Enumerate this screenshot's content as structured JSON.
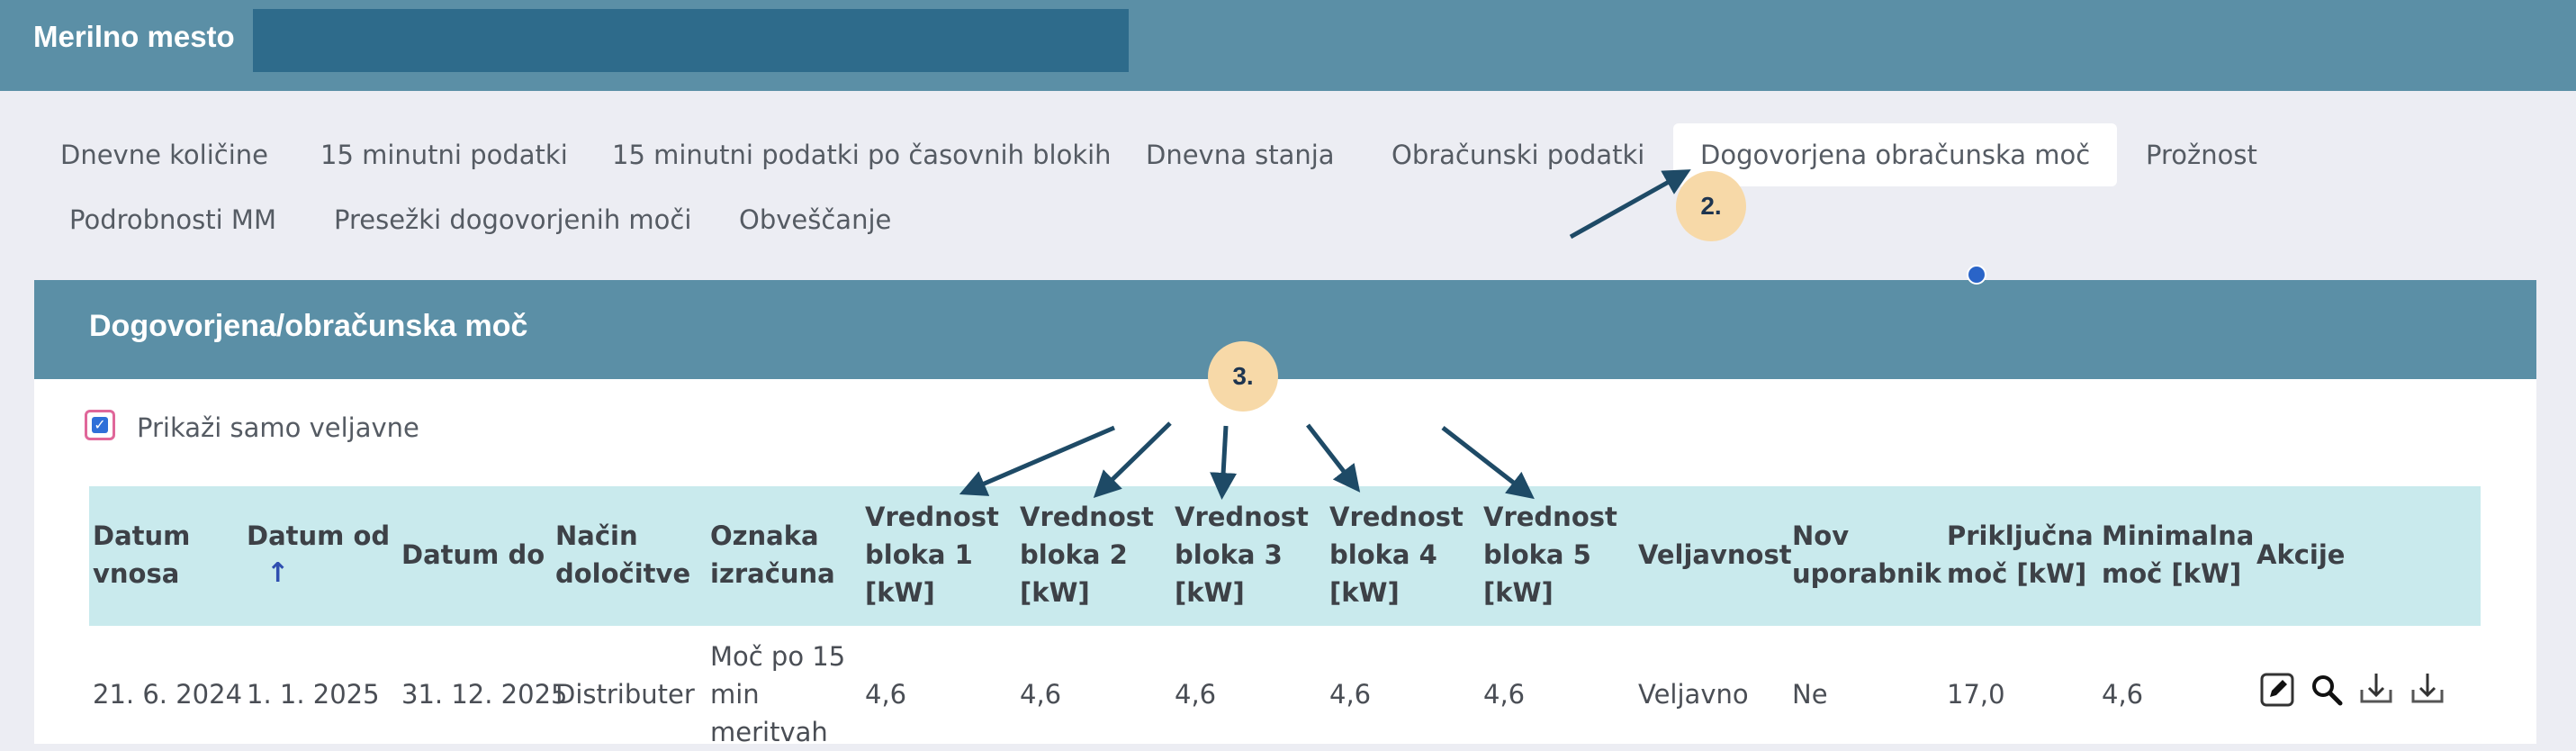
{
  "header": {
    "title": "Merilno mesto"
  },
  "tabs": [
    {
      "label": "Dnevne količine"
    },
    {
      "label": "15 minutni podatki"
    },
    {
      "label": "15 minutni podatki po časovnih blokih"
    },
    {
      "label": "Dnevna stanja"
    },
    {
      "label": "Obračunski podatki"
    },
    {
      "label": "Dogovorjena obračunska moč",
      "active": true
    },
    {
      "label": "Prožnost"
    },
    {
      "label": "Podrobnosti MM"
    },
    {
      "label": "Presežki dogovorjenih moči"
    },
    {
      "label": "Obveščanje"
    }
  ],
  "panel": {
    "title": "Dogovorjena/obračunska moč",
    "filter": {
      "label": "Prikaži samo veljavne",
      "checked": true
    }
  },
  "table": {
    "columns": [
      {
        "l1": "Datum",
        "l2": "vnosa",
        "l3": ""
      },
      {
        "l1": "Datum od",
        "l2": "↑",
        "l3": ""
      },
      {
        "l1": "Datum do",
        "l2": "",
        "l3": ""
      },
      {
        "l1": "Način",
        "l2": "določitve",
        "l3": ""
      },
      {
        "l1": "Oznaka",
        "l2": "izračuna",
        "l3": ""
      },
      {
        "l1": "Vrednost",
        "l2": "bloka 1",
        "l3": "[kW]"
      },
      {
        "l1": "Vrednost",
        "l2": "bloka 2",
        "l3": "[kW]"
      },
      {
        "l1": "Vrednost",
        "l2": "bloka 3",
        "l3": "[kW]"
      },
      {
        "l1": "Vrednost",
        "l2": "bloka 4",
        "l3": "[kW]"
      },
      {
        "l1": "Vrednost",
        "l2": "bloka 5",
        "l3": "[kW]"
      },
      {
        "l1": "Veljavnost",
        "l2": "",
        "l3": ""
      },
      {
        "l1": "Nov",
        "l2": "uporabnik",
        "l3": ""
      },
      {
        "l1": "Priključna",
        "l2": "moč [kW]",
        "l3": ""
      },
      {
        "l1": "Minimalna",
        "l2": "moč [kW]",
        "l3": ""
      },
      {
        "l1": "Akcije",
        "l2": "",
        "l3": ""
      }
    ],
    "rows": [
      {
        "datum_vnosa": "21. 6. 2024",
        "datum_od": "1. 1. 2025",
        "datum_do": "31. 12. 2025",
        "nacin": "Distributer",
        "oznaka_l1": "Moč po 15",
        "oznaka_l2": "min",
        "oznaka_l3": "meritvah",
        "b1": "4,6",
        "b2": "4,6",
        "b3": "4,6",
        "b4": "4,6",
        "b5": "4,6",
        "veljavnost": "Veljavno",
        "nov": "Ne",
        "prikljucna": "17,0",
        "minimalna": "4,6"
      }
    ],
    "actions": [
      "edit-icon",
      "search-icon",
      "download-icon",
      "download-icon"
    ]
  },
  "annotations": [
    {
      "label": "2."
    },
    {
      "label": "3."
    }
  ],
  "colors": {
    "header_bg": "#5b8fa6",
    "table_header_bg": "#c9eaed",
    "badge_bg": "#f7d9a8",
    "arrow": "#1e4a66"
  }
}
